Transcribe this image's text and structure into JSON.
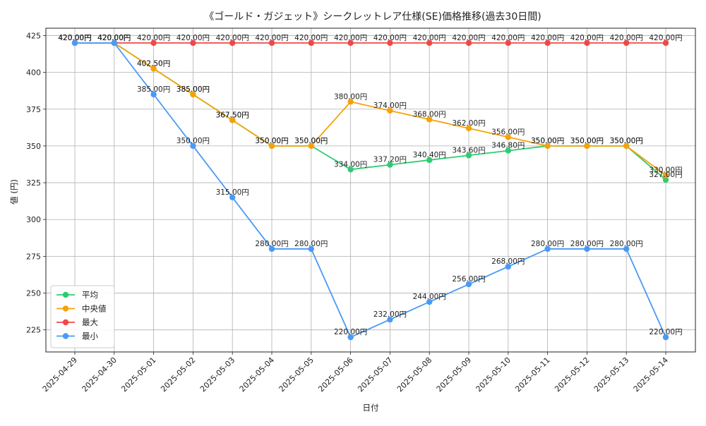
{
  "chart_data": {
    "type": "line",
    "title": "《ゴールド・ガジェット》シークレットレア仕様(SE)価格推移(過去30日間)",
    "xlabel": "日付",
    "ylabel": "値 (円)",
    "x": [
      "2025-04-29",
      "2025-04-30",
      "2025-05-01",
      "2025-05-02",
      "2025-05-03",
      "2025-05-04",
      "2025-05-05",
      "2025-05-06",
      "2025-05-07",
      "2025-05-08",
      "2025-05-09",
      "2025-05-10",
      "2025-05-11",
      "2025-05-12",
      "2025-05-13",
      "2025-05-14"
    ],
    "ylim": [
      210,
      430
    ],
    "yticks": [
      225,
      250,
      275,
      300,
      325,
      350,
      375,
      400,
      425
    ],
    "grid": true,
    "legend_position": "lower-left",
    "series": [
      {
        "name": "平均",
        "color": "#2ecc71",
        "values": [
          420,
          420,
          402.5,
          385,
          367.5,
          350,
          350,
          334,
          337.2,
          340.4,
          343.6,
          346.8,
          350,
          350,
          350,
          327
        ],
        "labels": [
          "420.00円",
          "420.00円",
          "402.50円",
          "385.00円",
          "367.50円",
          "350.00円",
          "350.00円",
          "334.00円",
          "337.20円",
          "340.40円",
          "343.60円",
          "346.80円",
          "350.00円",
          "350.00円",
          "350.00円",
          "327.00円"
        ]
      },
      {
        "name": "中央値",
        "color": "#f5a20a",
        "values": [
          420,
          420,
          402.5,
          385,
          367.5,
          350,
          350,
          380,
          374,
          368,
          362,
          356,
          350,
          350,
          350,
          330
        ],
        "labels": [
          "420.00円",
          "420.00円",
          "402.50円",
          "385.00円",
          "367.50円",
          "350.00円",
          "350.00円",
          "380.00円",
          "374.00円",
          "368.00円",
          "362.00円",
          "356.00円",
          "350.00円",
          "350.00円",
          "350.00円",
          "330.00円"
        ]
      },
      {
        "name": "最大",
        "color": "#f04848",
        "values": [
          420,
          420,
          420,
          420,
          420,
          420,
          420,
          420,
          420,
          420,
          420,
          420,
          420,
          420,
          420,
          420
        ],
        "labels": [
          "420.00円",
          "420.00円",
          "420.00円",
          "420.00円",
          "420.00円",
          "420.00円",
          "420.00円",
          "420.00円",
          "420.00円",
          "420.00円",
          "420.00円",
          "420.00円",
          "420.00円",
          "420.00円",
          "420.00円",
          "420.00円"
        ]
      },
      {
        "name": "最小",
        "color": "#4a9af5",
        "values": [
          420,
          420,
          385,
          350,
          315,
          280,
          280,
          220,
          232,
          244,
          256,
          268,
          280,
          280,
          280,
          220
        ],
        "labels": [
          "420.00円",
          "420.00円",
          "385.00円",
          "350.00円",
          "315.00円",
          "280.00円",
          "280.00円",
          "220.00円",
          "232.00円",
          "244.00円",
          "256.00円",
          "268.00円",
          "280.00円",
          "280.00円",
          "280.00円",
          "220.00円"
        ]
      }
    ]
  }
}
